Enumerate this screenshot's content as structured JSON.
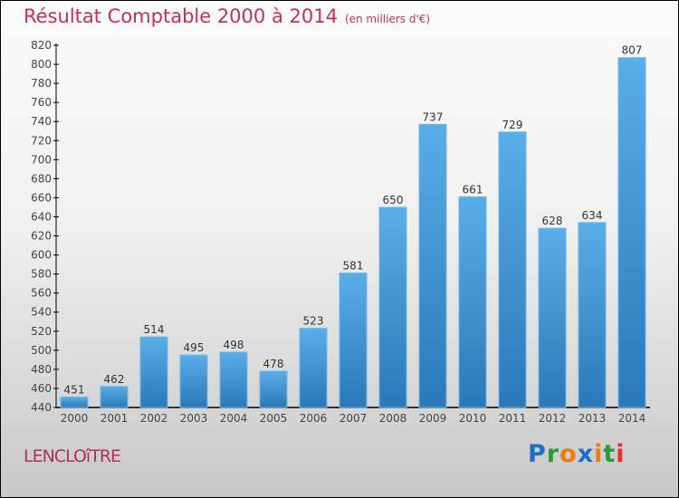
{
  "chart_data": {
    "type": "bar",
    "title": "Résultat Comptable 2000 à 2014",
    "subtitle": "(en milliers d'€)",
    "categories": [
      "2000",
      "2001",
      "2002",
      "2003",
      "2004",
      "2005",
      "2006",
      "2007",
      "2008",
      "2009",
      "2010",
      "2011",
      "2012",
      "2013",
      "2014"
    ],
    "values": [
      451,
      462,
      514,
      495,
      498,
      478,
      523,
      581,
      650,
      737,
      661,
      729,
      628,
      634,
      807
    ],
    "ylim": [
      440,
      820
    ],
    "ytick_step": 20,
    "xlabel": "",
    "ylabel": "",
    "grid": false,
    "bar_color": "#3a8fd0"
  },
  "footer": {
    "city": "LENCLOîTRE",
    "logo": "Proxiti"
  }
}
